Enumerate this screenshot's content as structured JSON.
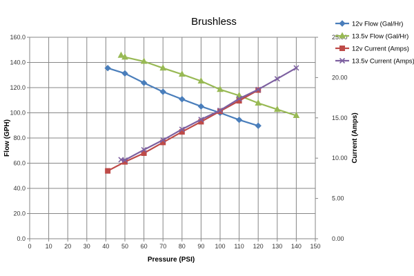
{
  "chart_data": {
    "type": "line",
    "title": "Brushless",
    "xlabel": "Pressure (PSI)",
    "ylabel_left": "Flow (GPH)",
    "ylabel_right": "Current (Amps)",
    "xlim": [
      0,
      150
    ],
    "ylim_left": [
      0,
      160
    ],
    "ylim_right": [
      0,
      25
    ],
    "x_ticks": [
      "0",
      "10",
      "20",
      "30",
      "40",
      "50",
      "60",
      "70",
      "80",
      "90",
      "100",
      "110",
      "120",
      "130",
      "140",
      "150"
    ],
    "y_left_ticks": [
      "0.0",
      "20.0",
      "40.0",
      "60.0",
      "80.0",
      "100.0",
      "120.0",
      "140.0",
      "160.0"
    ],
    "y_right_ticks": [
      "0.00",
      "5.00",
      "10.00",
      "15.00",
      "20.00",
      "25.00"
    ],
    "grid": true,
    "legend_position": "top-right",
    "series": [
      {
        "name": "12v Flow (Gal/Hr)",
        "axis": "left",
        "color": "#4a7ebb",
        "marker": "diamond",
        "x": [
          41,
          50,
          60,
          70,
          80,
          90,
          100,
          110,
          120
        ],
        "y": [
          135.5,
          131.3,
          123.8,
          116.7,
          110.8,
          105.1,
          100.0,
          94.4,
          89.7
        ]
      },
      {
        "name": "13.5v Flow (Gal/Hr)",
        "axis": "left",
        "color": "#98b954",
        "marker": "triangle",
        "x": [
          48,
          50,
          60,
          70,
          80,
          90,
          100,
          110,
          120,
          130,
          140
        ],
        "y": [
          145.6,
          144.2,
          140.8,
          135.5,
          130.6,
          125.2,
          118.5,
          113.7,
          107.7,
          102.7,
          97.8
        ]
      },
      {
        "name": "12v Current (Amps)",
        "axis": "right",
        "color": "#be4b48",
        "marker": "square",
        "x": [
          41,
          50,
          60,
          70,
          80,
          90,
          100,
          110,
          120
        ],
        "y": [
          8.42,
          9.54,
          10.62,
          11.95,
          13.26,
          14.52,
          15.82,
          17.12,
          18.45
        ]
      },
      {
        "name": "13.5v Current (Amps)",
        "axis": "right",
        "color": "#7d60a0",
        "marker": "x",
        "x": [
          48,
          50,
          60,
          70,
          80,
          90,
          100,
          110,
          120,
          130,
          140
        ],
        "y": [
          9.81,
          9.76,
          11.04,
          12.25,
          13.58,
          14.8,
          15.93,
          17.38,
          18.52,
          19.85,
          21.2
        ]
      }
    ]
  }
}
